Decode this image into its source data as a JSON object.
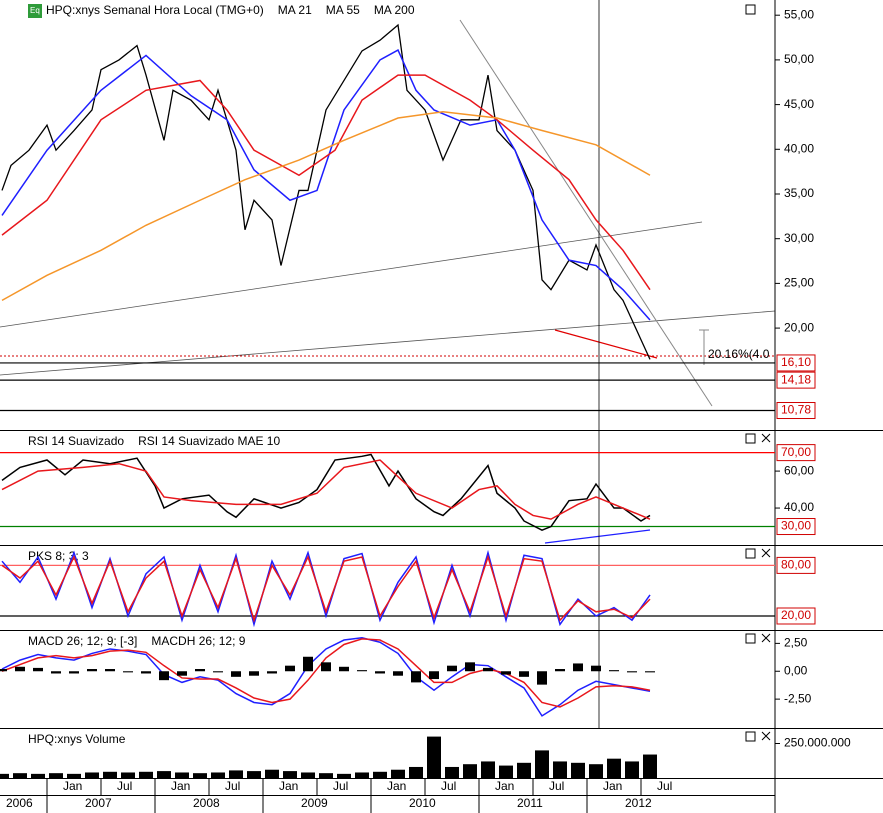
{
  "chart_data": [
    {
      "type": "line",
      "icon": "Eq",
      "title": "HPQ:xnys Semanal Hora Local (TMG+0)",
      "ylim": [
        8.6,
        56.7
      ],
      "yticks": [
        {
          "value": 20,
          "label": "20,00"
        },
        {
          "value": 25,
          "label": "25,00"
        },
        {
          "value": 30,
          "label": "30,00"
        },
        {
          "value": 35,
          "label": "35,00"
        },
        {
          "value": 40,
          "label": "40,00"
        },
        {
          "value": 45,
          "label": "45,00"
        },
        {
          "value": 50,
          "label": "50,00"
        },
        {
          "value": 55,
          "label": "55,00"
        }
      ],
      "levels": [
        {
          "value": 16.1,
          "label": "16,10",
          "color": "#000000"
        },
        {
          "value": 14.18,
          "label": "14,18",
          "color": "#000000"
        },
        {
          "value": 10.78,
          "label": "10,78",
          "color": "#000000"
        }
      ],
      "annotation": "20.16%(4.0",
      "series": [
        {
          "color": "#000000",
          "x": [
            "2006-08",
            "2006-09",
            "2006-11",
            "2007-01",
            "2007-02",
            "2007-04",
            "2007-06",
            "2007-07",
            "2007-09",
            "2007-11",
            "2007-12",
            "2008-02",
            "2008-03",
            "2008-05",
            "2008-07",
            "2008-08",
            "2008-10",
            "2008-11",
            "2008-12",
            "2009-02",
            "2009-03",
            "2009-05",
            "2009-06",
            "2009-08",
            "2009-12",
            "2010-02",
            "2010-04",
            "2010-05",
            "2010-07",
            "2010-09",
            "2010-11",
            "2011-01",
            "2011-02",
            "2011-03",
            "2011-05",
            "2011-07",
            "2011-08",
            "2011-09",
            "2011-11",
            "2012-01",
            "2012-02",
            "2012-04",
            "2012-05",
            "2012-06",
            "2012-07",
            "2012-08"
          ],
          "values": [
            35.4,
            38.2,
            39.9,
            42.7,
            39.9,
            42.1,
            44.4,
            48.9,
            50.0,
            51.6,
            48.3,
            41.0,
            46.6,
            45.5,
            43.3,
            46.6,
            39.9,
            31.0,
            34.3,
            32.1,
            27.0,
            35.4,
            35.4,
            44.4,
            51.0,
            52.2,
            53.9,
            46.6,
            44.4,
            38.8,
            43.3,
            43.3,
            48.3,
            42.1,
            39.9,
            35.4,
            25.4,
            24.3,
            27.6,
            26.5,
            29.3,
            24.3,
            23.1,
            20.9,
            18.7,
            16.5
          ]
        },
        {
          "name": "MA 21",
          "color": "#1f1fff",
          "x": [
            "2006-08",
            "2007-01",
            "2007-07",
            "2007-12",
            "2008-05",
            "2008-09",
            "2008-12",
            "2009-04",
            "2009-07",
            "2009-10",
            "2010-02",
            "2010-04",
            "2010-06",
            "2010-08",
            "2010-12",
            "2011-03",
            "2011-05",
            "2011-08",
            "2011-11",
            "2012-02",
            "2012-05",
            "2012-08"
          ],
          "values": [
            32.6,
            39.9,
            46.6,
            50.5,
            46.0,
            43.3,
            37.7,
            34.3,
            35.4,
            44.4,
            50.0,
            51.1,
            46.6,
            44.4,
            42.7,
            43.3,
            39.9,
            32.1,
            27.6,
            27.0,
            24.3,
            20.9
          ]
        },
        {
          "name": "MA 55",
          "color": "#e8171c",
          "x": [
            "2006-08",
            "2007-01",
            "2007-07",
            "2007-12",
            "2008-06",
            "2008-09",
            "2008-12",
            "2009-05",
            "2009-09",
            "2009-12",
            "2010-04",
            "2010-07",
            "2010-12",
            "2011-03",
            "2011-07",
            "2011-11",
            "2012-02",
            "2012-05",
            "2012-08"
          ],
          "values": [
            30.4,
            34.3,
            43.3,
            46.6,
            47.7,
            44.4,
            39.9,
            37.1,
            39.9,
            45.5,
            48.3,
            48.3,
            45.5,
            43.3,
            39.9,
            36.6,
            32.1,
            28.7,
            24.3
          ]
        },
        {
          "name": "MA 200",
          "color": "#f5962a",
          "x": [
            "2006-08",
            "2007-01",
            "2007-07",
            "2007-12",
            "2008-06",
            "2008-11",
            "2009-05",
            "2009-10",
            "2010-04",
            "2010-09",
            "2011-03",
            "2011-08",
            "2012-02",
            "2012-08"
          ],
          "values": [
            23.1,
            25.9,
            28.7,
            31.5,
            34.3,
            36.6,
            38.8,
            41.0,
            43.5,
            44.2,
            43.5,
            42.1,
            40.5,
            37.1
          ]
        }
      ]
    },
    {
      "type": "line",
      "ylim": [
        20,
        81.7
      ],
      "yticks": [
        {
          "value": 60,
          "label": "60,00"
        },
        {
          "value": 40,
          "label": "40,00"
        }
      ],
      "levels": [
        {
          "value": 70,
          "label": "70,00",
          "color": "#ff0000"
        },
        {
          "value": 30,
          "label": "30,00",
          "color": "#008000"
        }
      ],
      "series": [
        {
          "name": "RSI 14 Suavizado",
          "color": "#000000",
          "x": [
            "2006-08",
            "2006-10",
            "2007-01",
            "2007-03",
            "2007-05",
            "2007-08",
            "2007-11",
            "2008-01",
            "2008-02",
            "2008-04",
            "2008-07",
            "2008-09",
            "2008-10",
            "2008-12",
            "2009-03",
            "2009-05",
            "2009-07",
            "2009-09",
            "2009-12",
            "2010-01",
            "2010-03",
            "2010-04",
            "2010-06",
            "2010-08",
            "2010-09",
            "2010-11",
            "2011-02",
            "2011-03",
            "2011-05",
            "2011-06",
            "2011-08",
            "2011-09",
            "2011-11",
            "2012-01",
            "2012-02",
            "2012-04",
            "2012-05",
            "2012-07",
            "2012-08"
          ],
          "values": [
            55,
            62,
            66,
            58,
            66,
            64,
            67,
            52,
            40,
            45,
            47,
            38,
            35,
            45,
            40,
            43,
            50,
            66,
            68,
            69,
            52,
            60,
            45,
            38,
            36,
            45,
            63,
            48,
            40,
            33,
            28,
            30,
            44,
            45,
            53,
            40,
            40,
            33,
            36
          ]
        },
        {
          "name": "RSI 14 Suavizado MAE 10",
          "color": "#e8171c",
          "x": [
            "2006-08",
            "2006-12",
            "2007-05",
            "2007-09",
            "2007-12",
            "2008-02",
            "2008-05",
            "2008-10",
            "2009-03",
            "2009-07",
            "2009-10",
            "2010-02",
            "2010-04",
            "2010-06",
            "2010-10",
            "2011-01",
            "2011-03",
            "2011-05",
            "2011-07",
            "2011-09",
            "2011-12",
            "2012-02",
            "2012-05",
            "2012-08"
          ],
          "values": [
            50,
            60,
            62,
            64,
            60,
            46,
            44,
            42,
            42,
            48,
            62,
            66,
            57,
            48,
            40,
            50,
            52,
            42,
            36,
            34,
            42,
            46,
            40,
            34
          ]
        }
      ]
    },
    {
      "type": "line",
      "title": "PKS 8; 3; 3",
      "ylim": [
        3.4,
        103
      ],
      "levels": [
        {
          "value": 80,
          "label": "80,00",
          "color": "#ff6060"
        },
        {
          "value": 20,
          "label": "20,00",
          "color": "#000000"
        }
      ],
      "x": [
        "2006-08",
        "2006-10",
        "2006-12",
        "2007-02",
        "2007-04",
        "2007-06",
        "2007-08",
        "2007-10",
        "2007-12",
        "2008-02",
        "2008-04",
        "2008-06",
        "2008-08",
        "2008-10",
        "2008-12",
        "2009-02",
        "2009-04",
        "2009-06",
        "2009-08",
        "2009-10",
        "2009-12",
        "2010-02",
        "2010-04",
        "2010-06",
        "2010-08",
        "2010-10",
        "2010-12",
        "2011-02",
        "2011-04",
        "2011-06",
        "2011-08",
        "2011-10",
        "2011-12",
        "2012-02",
        "2012-04",
        "2012-06",
        "2012-08"
      ],
      "series": [
        {
          "color": "#1f1fff",
          "values": [
            85,
            60,
            90,
            40,
            95,
            30,
            88,
            20,
            70,
            90,
            15,
            80,
            25,
            92,
            10,
            85,
            40,
            95,
            20,
            88,
            94,
            15,
            60,
            90,
            12,
            80,
            20,
            95,
            15,
            92,
            88,
            10,
            40,
            20,
            30,
            15,
            45
          ]
        },
        {
          "color": "#e8171c",
          "values": [
            80,
            65,
            85,
            45,
            90,
            35,
            85,
            25,
            65,
            85,
            20,
            75,
            30,
            88,
            15,
            80,
            45,
            90,
            25,
            85,
            90,
            20,
            55,
            85,
            18,
            75,
            25,
            90,
            20,
            88,
            85,
            15,
            38,
            25,
            28,
            18,
            40
          ]
        }
      ]
    },
    {
      "type": "line",
      "ylim": [
        -5.09,
        3.61
      ],
      "yticks": [
        {
          "value": 2.5,
          "label": "2,50"
        },
        {
          "value": 0,
          "label": "0,00"
        },
        {
          "value": -2.5,
          "label": "-2,50"
        }
      ],
      "x": [
        "2006-08",
        "2006-10",
        "2006-12",
        "2007-02",
        "2007-04",
        "2007-06",
        "2007-08",
        "2007-10",
        "2007-12",
        "2008-02",
        "2008-04",
        "2008-06",
        "2008-08",
        "2008-10",
        "2008-12",
        "2009-02",
        "2009-04",
        "2009-06",
        "2009-08",
        "2009-10",
        "2009-12",
        "2010-02",
        "2010-04",
        "2010-06",
        "2010-08",
        "2010-10",
        "2010-12",
        "2011-02",
        "2011-04",
        "2011-06",
        "2011-08",
        "2011-10",
        "2011-12",
        "2012-02",
        "2012-04",
        "2012-06",
        "2012-08"
      ],
      "series": [
        {
          "color": "#1f1fff",
          "values": [
            0.2,
            1.0,
            1.5,
            1.2,
            1.0,
            1.6,
            2.0,
            1.8,
            1.5,
            -0.3,
            -1.0,
            -0.5,
            -0.8,
            -2.0,
            -2.8,
            -3.0,
            -2.0,
            0.5,
            2.0,
            2.8,
            3.0,
            2.6,
            1.6,
            -0.5,
            -1.7,
            -0.5,
            0.6,
            0.5,
            -0.5,
            -1.5,
            -4.0,
            -3.0,
            -1.7,
            -0.9,
            -1.2,
            -1.5,
            -1.8
          ]
        },
        {
          "name": "MACD 26; 12; 9; [-3]",
          "color": "#e8171c",
          "values": [
            0.0,
            0.6,
            1.2,
            1.4,
            1.2,
            1.4,
            1.8,
            1.9,
            1.7,
            0.5,
            -0.6,
            -0.7,
            -0.7,
            -1.5,
            -2.4,
            -2.8,
            -2.5,
            -0.8,
            1.2,
            2.4,
            2.9,
            2.8,
            2.0,
            0.5,
            -1.0,
            -1.0,
            -0.2,
            0.2,
            -0.2,
            -1.0,
            -2.8,
            -3.2,
            -2.4,
            -1.4,
            -1.3,
            -1.4,
            -1.7
          ]
        },
        {
          "name": "MACDH 26; 12; 9",
          "type": "bar",
          "color": "#000000",
          "values": [
            0.2,
            0.4,
            0.3,
            -0.2,
            -0.2,
            0.2,
            0.2,
            -0.1,
            -0.2,
            -0.8,
            -0.4,
            0.2,
            -0.1,
            -0.5,
            -0.4,
            -0.2,
            0.5,
            1.3,
            0.8,
            0.4,
            0.1,
            -0.2,
            -0.4,
            -1.0,
            -0.7,
            0.5,
            0.8,
            0.3,
            -0.3,
            -0.5,
            -1.2,
            0.2,
            0.7,
            0.5,
            0.1,
            -0.1,
            -0.1
          ]
        }
      ]
    },
    {
      "type": "bar",
      "title": "HPQ:xnys Volume",
      "color": "#000000",
      "ylim": [
        0,
        355000000
      ],
      "yticks": [
        {
          "value": 250000000,
          "label": "250.000.000"
        }
      ],
      "x": [
        "2006-08",
        "2006-10",
        "2006-12",
        "2007-02",
        "2007-04",
        "2007-06",
        "2007-08",
        "2007-10",
        "2007-12",
        "2008-02",
        "2008-04",
        "2008-06",
        "2008-08",
        "2008-10",
        "2008-12",
        "2009-02",
        "2009-04",
        "2009-06",
        "2009-08",
        "2009-10",
        "2009-12",
        "2010-02",
        "2010-04",
        "2010-06",
        "2010-08",
        "2010-10",
        "2010-12",
        "2011-02",
        "2011-04",
        "2011-06",
        "2011-08",
        "2011-10",
        "2011-12",
        "2012-02",
        "2012-04",
        "2012-06",
        "2012-08"
      ],
      "values": [
        30000000,
        35000000,
        30000000,
        35000000,
        30000000,
        40000000,
        45000000,
        40000000,
        45000000,
        50000000,
        40000000,
        35000000,
        40000000,
        55000000,
        50000000,
        60000000,
        50000000,
        40000000,
        35000000,
        30000000,
        40000000,
        45000000,
        60000000,
        80000000,
        300000000,
        80000000,
        100000000,
        120000000,
        90000000,
        110000000,
        200000000,
        120000000,
        110000000,
        100000000,
        140000000,
        120000000,
        170000000
      ]
    }
  ],
  "x_axis": {
    "month_ticks": [
      {
        "value": "2007-01",
        "label": "Jan"
      },
      {
        "value": "2007-07",
        "label": "Jul"
      },
      {
        "value": "2008-01",
        "label": "Jan"
      },
      {
        "value": "2008-07",
        "label": "Jul"
      },
      {
        "value": "2009-01",
        "label": "Jan"
      },
      {
        "value": "2009-07",
        "label": "Jul"
      },
      {
        "value": "2010-01",
        "label": "Jan"
      },
      {
        "value": "2010-07",
        "label": "Jul"
      },
      {
        "value": "2011-01",
        "label": "Jan"
      },
      {
        "value": "2011-07",
        "label": "Jul"
      },
      {
        "value": "2012-01",
        "label": "Jan"
      },
      {
        "value": "2012-07",
        "label": "Jul"
      }
    ],
    "years": [
      2006,
      2007,
      2008,
      2009,
      2010,
      2011,
      2012
    ]
  }
}
